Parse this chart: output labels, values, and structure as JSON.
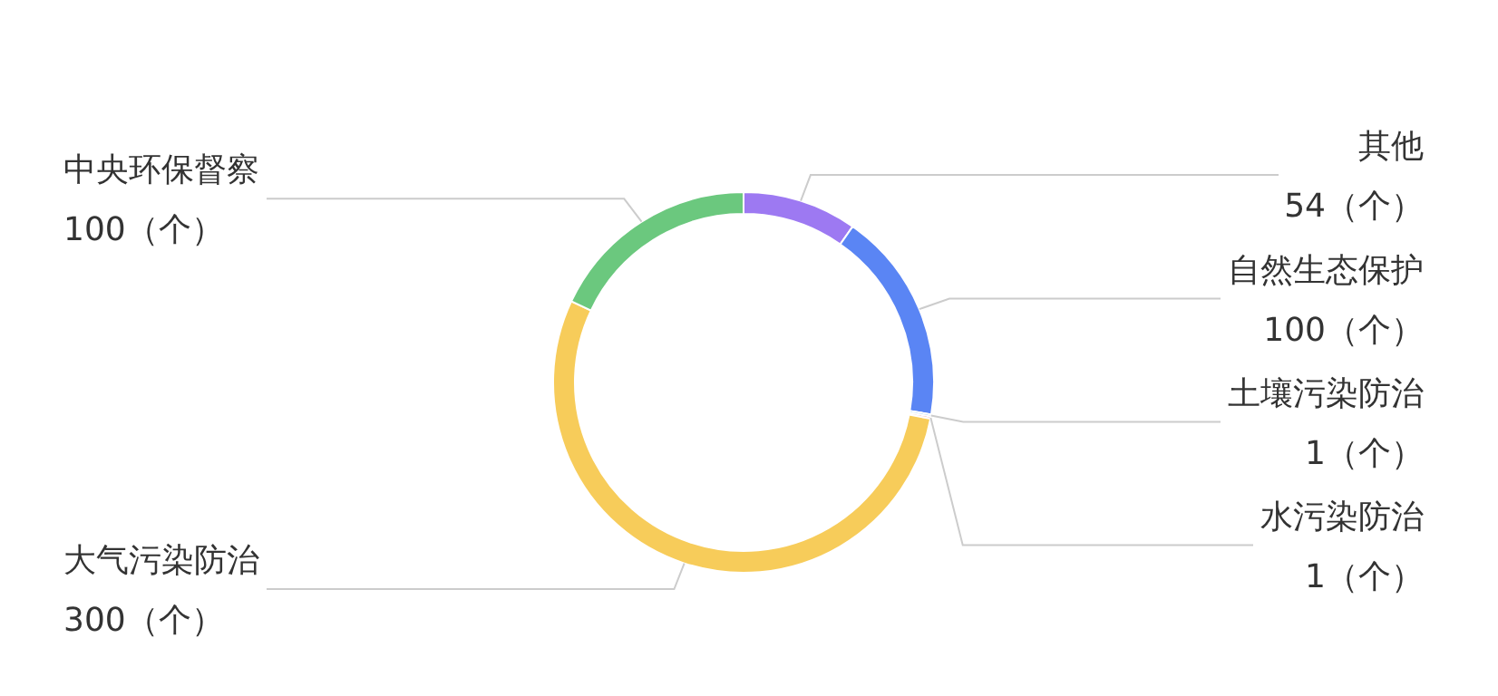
{
  "chart_data": {
    "type": "donut",
    "categories": [
      "其他",
      "自然生态保护",
      "土壤污染防治",
      "水污染防治",
      "大气污染防治",
      "中央环保督察"
    ],
    "values": [
      54,
      100,
      1,
      1,
      300,
      100
    ],
    "value_labels": [
      "54（个）",
      "100（个）",
      "1（个）",
      "1（个）",
      "300（个）",
      "100（个）"
    ],
    "colors": [
      "#9d79f2",
      "#5a85f4",
      "#4aa6f0",
      "#e0584f",
      "#f7cc5a",
      "#6bc87e"
    ]
  }
}
